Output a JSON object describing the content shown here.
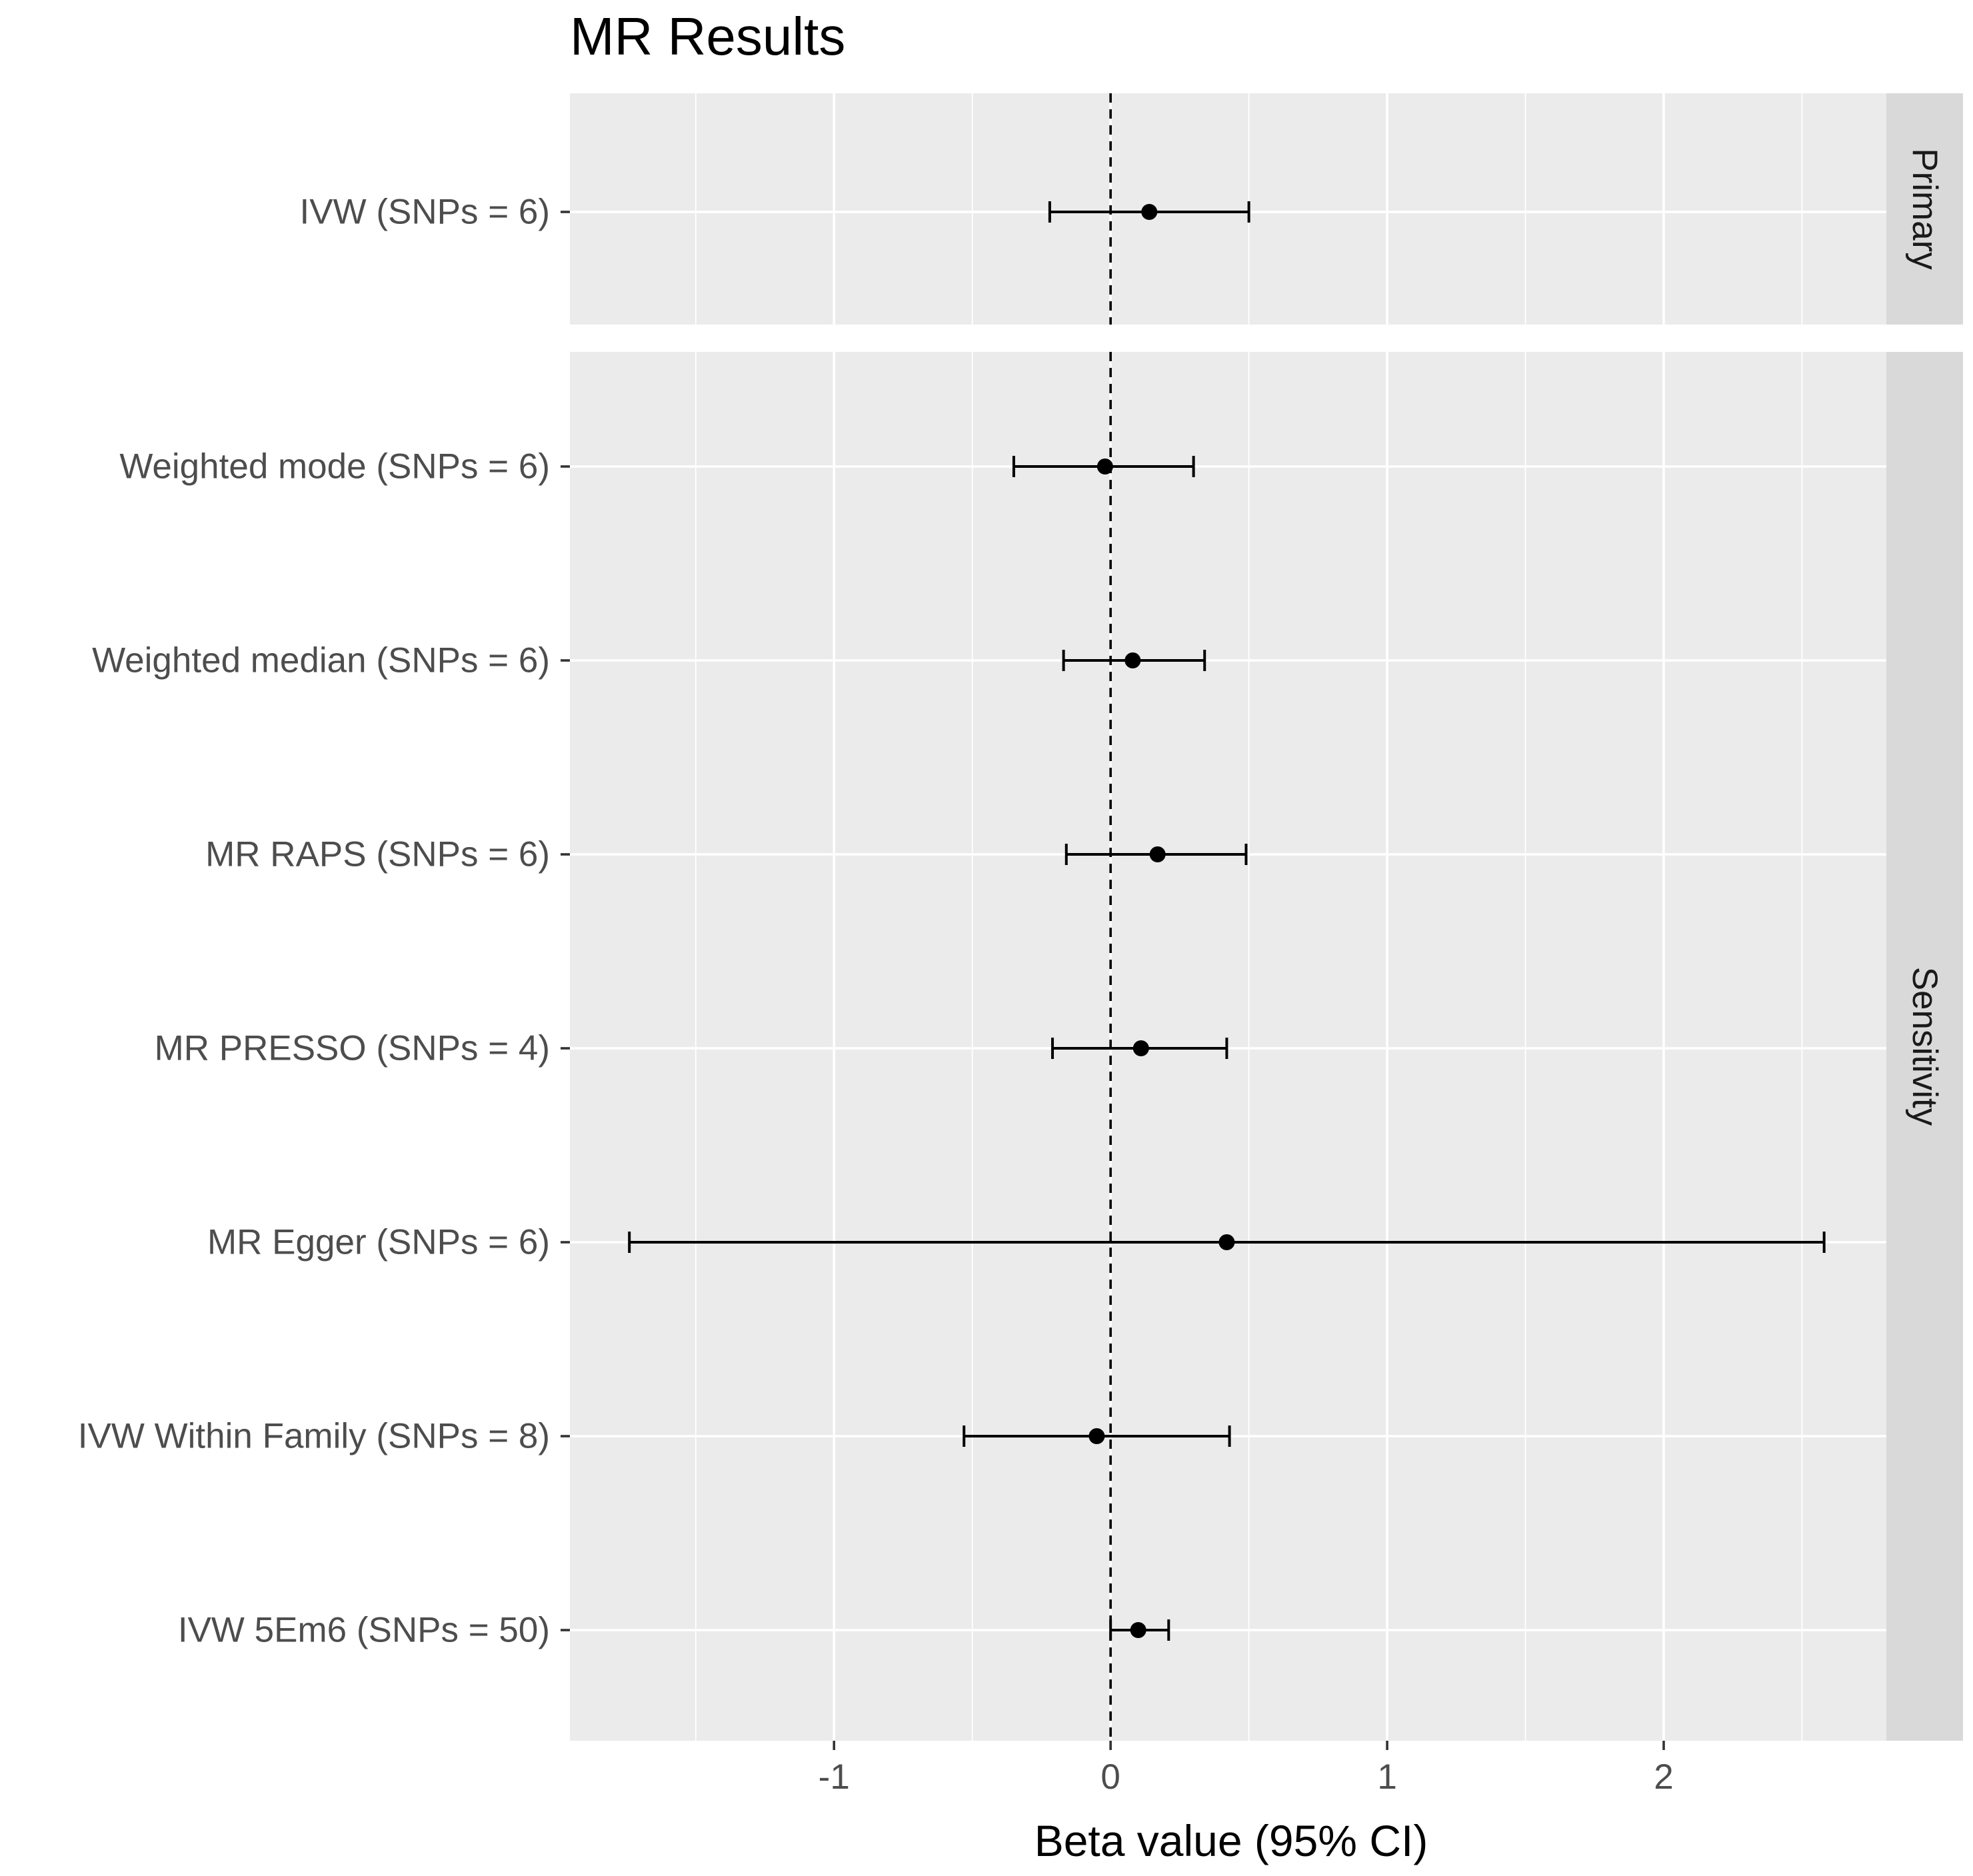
{
  "chart_data": {
    "type": "forest",
    "title": "MR Results",
    "xlabel": "Beta value (95% CI)",
    "ylabel": "",
    "xlim": [
      -1.955,
      2.805
    ],
    "x_ticks": [
      -1,
      0,
      1,
      2
    ],
    "x_tick_labels": [
      "-1",
      "0",
      "1",
      "2"
    ],
    "x_minor_ticks": [
      -1.5,
      -0.5,
      0.5,
      1.5,
      2.5
    ],
    "reference_line": 0,
    "grid": true,
    "facets": [
      {
        "label": "Primary",
        "rows": [
          {
            "label": "IVW (SNPs = 6)",
            "estimate": 0.14,
            "lower": -0.22,
            "upper": 0.5
          }
        ]
      },
      {
        "label": "Sensitivity",
        "rows": [
          {
            "label": "Weighted mode (SNPs = 6)",
            "estimate": -0.02,
            "lower": -0.35,
            "upper": 0.3
          },
          {
            "label": "Weighted median (SNPs = 6)",
            "estimate": 0.08,
            "lower": -0.17,
            "upper": 0.34
          },
          {
            "label": "MR RAPS (SNPs = 6)",
            "estimate": 0.17,
            "lower": -0.16,
            "upper": 0.49
          },
          {
            "label": "MR PRESSO (SNPs = 4)",
            "estimate": 0.11,
            "lower": -0.21,
            "upper": 0.42
          },
          {
            "label": "MR Egger (SNPs = 6)",
            "estimate": 0.42,
            "lower": -1.74,
            "upper": 2.58
          },
          {
            "label": "IVW Within Family (SNPs = 8)",
            "estimate": -0.05,
            "lower": -0.53,
            "upper": 0.43
          },
          {
            "label": "IVW 5Em6 (SNPs = 50)",
            "estimate": 0.1,
            "lower": 0.0,
            "upper": 0.21
          }
        ]
      }
    ]
  }
}
